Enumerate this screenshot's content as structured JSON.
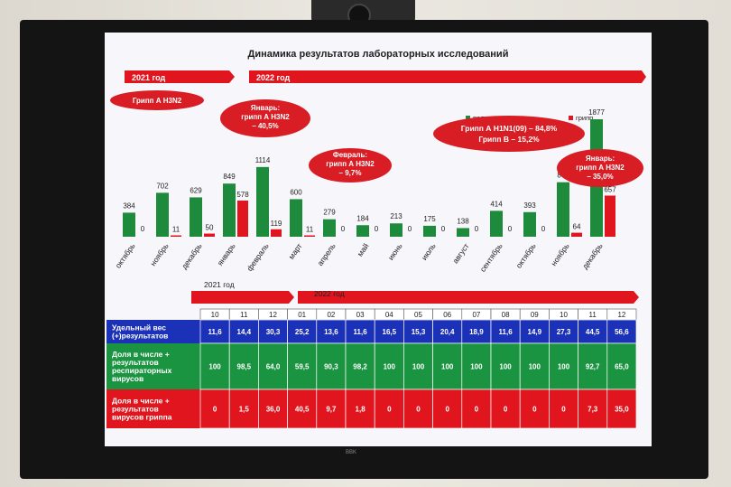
{
  "slide": {
    "title": "Динамика результатов лабораторных исследований",
    "year_2021": "2021 год",
    "year_2022": "2022 год",
    "callouts": {
      "h3n2_2021": "Грипп А Н3N2",
      "jan": [
        "Январь:",
        "грипп А Н3N2",
        "– 40,5%"
      ],
      "feb": [
        "Февраль:",
        "грипп А Н3N2",
        "– 9,7%"
      ],
      "h1n1": [
        "Грипп А Н1N1(09) – 84,8%",
        "Грипп В – 15,2%"
      ],
      "jan2": [
        "Январь:",
        "грипп А Н3N2",
        "– 35,0%"
      ]
    },
    "legend": {
      "positive": "положительных",
      "flu": "грипп"
    }
  },
  "chart_data": {
    "type": "bar",
    "categories": [
      "октябрь",
      "ноябрь",
      "декабрь",
      "январь",
      "февраль",
      "март",
      "апрель",
      "май",
      "июнь",
      "июль",
      "август",
      "сентябрь",
      "октябрь",
      "ноябрь",
      "декабрь"
    ],
    "series": [
      {
        "name": "положительных",
        "values": [
          384,
          702,
          629,
          849,
          1114,
          600,
          279,
          184,
          213,
          175,
          138,
          414,
          393,
          871,
          1877
        ],
        "color": "#1e8a3c"
      },
      {
        "name": "грипп",
        "values": [
          0,
          11,
          50,
          578,
          119,
          11,
          0,
          0,
          0,
          0,
          0,
          0,
          0,
          64,
          657
        ],
        "color": "#e0151d"
      }
    ]
  },
  "table": {
    "header_2021": "2021 год",
    "header_2022": "2022 год",
    "months": [
      "10",
      "11",
      "12",
      "01",
      "02",
      "03",
      "04",
      "05",
      "06",
      "07",
      "08",
      "09",
      "10",
      "11",
      "12"
    ],
    "rows": [
      {
        "label": [
          "Удельный вес",
          "(+)результатов"
        ],
        "color": "#1b32b8",
        "values": [
          "11,6",
          "14,4",
          "30,3",
          "25,2",
          "13,6",
          "11,6",
          "16,5",
          "15,3",
          "20,4",
          "18,9",
          "11,6",
          "14,9",
          "27,3",
          "44,5",
          "56,6"
        ]
      },
      {
        "label": [
          "Доля в числе +",
          "результатов",
          "респираторных",
          "вирусов"
        ],
        "color": "#1a9440",
        "values": [
          "100",
          "98,5",
          "64,0",
          "59,5",
          "90,3",
          "98,2",
          "100",
          "100",
          "100",
          "100",
          "100",
          "100",
          "100",
          "92,7",
          "65,0"
        ]
      },
      {
        "label": [
          "Доля в числе +",
          "результатов",
          "вирусов гриппа"
        ],
        "color": "#e0151d",
        "values": [
          "0",
          "1,5",
          "36,0",
          "40,5",
          "9,7",
          "1,8",
          "0",
          "0",
          "0",
          "0",
          "0",
          "0",
          "0",
          "7,3",
          "35,0"
        ]
      }
    ]
  },
  "tv_brand": "BBK"
}
